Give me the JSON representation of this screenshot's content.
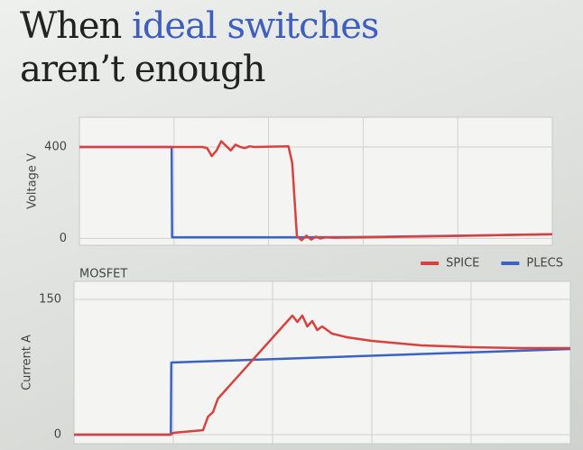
{
  "header": {
    "title_start": "When",
    "title_highlight": "ideal switches",
    "title_end": "aren’t enough"
  },
  "chart_data": [
    {
      "type": "line",
      "ylabel": "Voltage V",
      "ylim": [
        -30,
        530
      ],
      "yticks": [
        0,
        400
      ],
      "xlim": [
        0,
        100
      ],
      "xticks": [
        20,
        40,
        60,
        80
      ],
      "grid": true,
      "legend": false,
      "series": [
        {
          "color": "#3b63c4",
          "x": [
            0,
            19.5,
            19.6,
            45,
            60,
            100
          ],
          "values": [
            400,
            400,
            5,
            5,
            6,
            18
          ]
        },
        {
          "color": "#d9413f",
          "x": [
            0,
            19.5,
            26,
            27,
            28,
            29,
            30,
            31,
            32,
            33,
            34,
            35,
            36,
            37,
            44.2,
            45,
            46,
            47,
            48,
            49,
            50,
            51,
            52,
            54,
            60,
            70,
            80,
            90,
            100
          ],
          "values": [
            400,
            400,
            400,
            395,
            360,
            385,
            425,
            405,
            385,
            410,
            400,
            395,
            403,
            400,
            403,
            330,
            10,
            -8,
            12,
            -5,
            8,
            0,
            5,
            3,
            5,
            8,
            11,
            15,
            18
          ]
        }
      ]
    },
    {
      "type": "line",
      "subtitle": "MOSFET",
      "ylabel": "Current A",
      "ylim": [
        -10,
        170
      ],
      "yticks": [
        0,
        150
      ],
      "xlim": [
        0,
        100
      ],
      "xticks": [
        20,
        40,
        60,
        80
      ],
      "grid": true,
      "legend": "top-right",
      "series": [
        {
          "name": "PLECS",
          "color": "#3b63c4",
          "x": [
            0,
            19.5,
            19.6,
            100
          ],
          "values": [
            0,
            0,
            80,
            95
          ]
        },
        {
          "name": "SPICE",
          "color": "#d9413f",
          "x": [
            0,
            19.5,
            20,
            24,
            26,
            27,
            28,
            29,
            44,
            45,
            46,
            47,
            48,
            49,
            50,
            52,
            55,
            60,
            70,
            80,
            90,
            100
          ],
          "values": [
            0,
            0,
            2,
            4,
            5,
            20,
            25,
            40,
            132,
            125,
            132,
            120,
            126,
            116,
            120,
            112,
            108,
            104,
            99,
            97,
            96,
            96
          ]
        }
      ]
    }
  ]
}
